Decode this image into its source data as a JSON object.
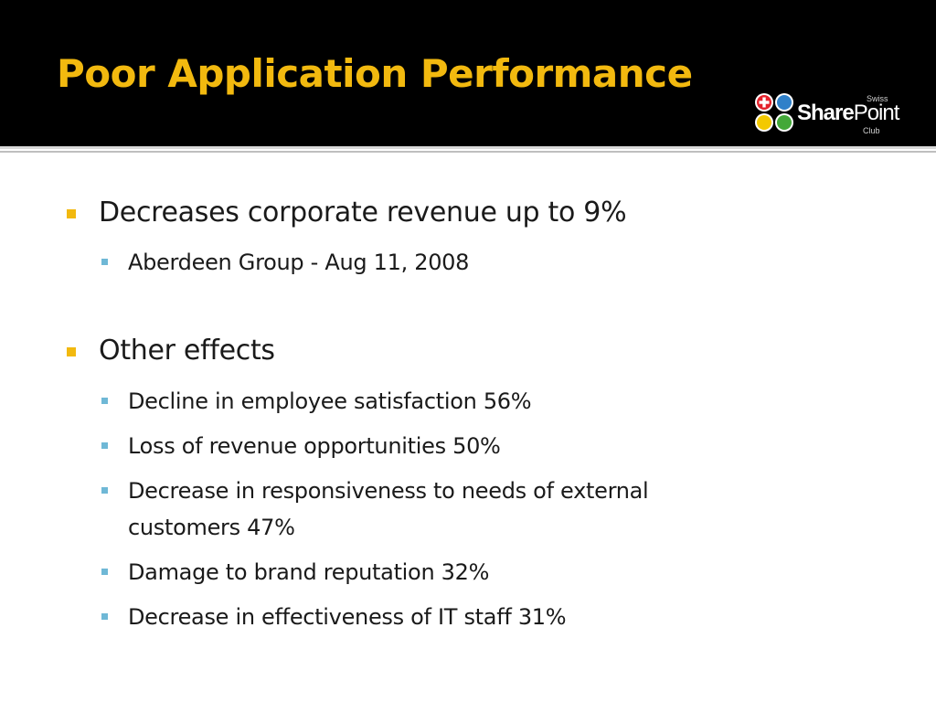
{
  "slide": {
    "title": "Poor Application Performance",
    "logo": {
      "swiss": "Swiss",
      "share": "Share",
      "point": "Point",
      "club": "Club"
    },
    "bullets": [
      {
        "text": "Decreases corporate revenue up to 9%",
        "sub": [
          "Aberdeen  Group - Aug 11, 2008"
        ]
      },
      {
        "text": "Other effects",
        "sub": [
          "Decline in employee satisfaction 56%",
          "Loss of revenue opportunities 50%",
          "Decrease in responsiveness to needs of external customers 47%",
          "Damage to brand reputation 32%",
          "Decrease in effectiveness of IT staff 31%"
        ]
      }
    ],
    "colors": {
      "title": "#f2b90f",
      "header_background": "#000000",
      "level1_bullet": "#f2b90f",
      "level2_bullet": "#6fb8d6",
      "body_text": "#1a1a1a"
    }
  }
}
